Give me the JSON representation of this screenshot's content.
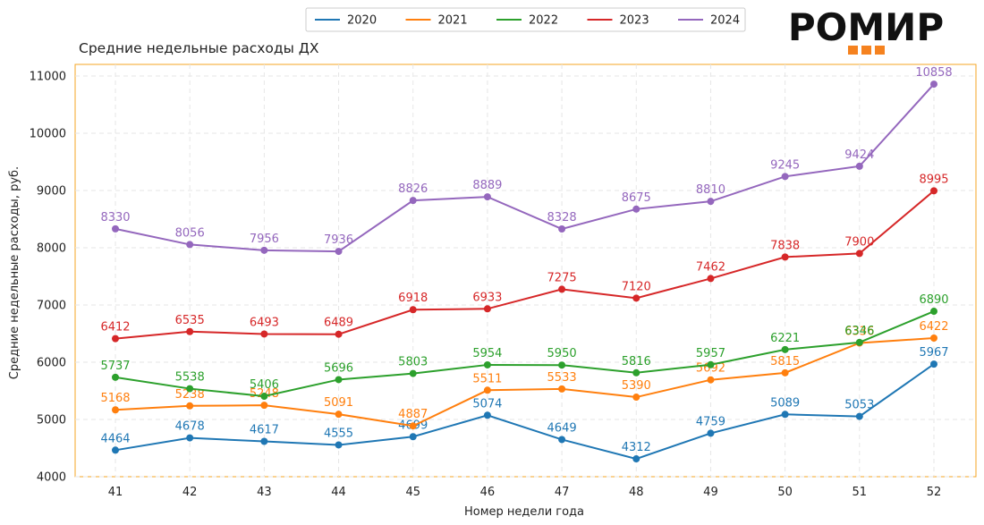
{
  "brand": {
    "logo_text": "РОМИР",
    "logo_color": "#111111",
    "logo_accent": "#f5821f"
  },
  "chart_data": {
    "type": "line",
    "title": "Средние недельные расходы ДХ",
    "xlabel": "Номер недели года",
    "ylabel": "Средние недельные расходы, руб.",
    "x": [
      41,
      42,
      43,
      44,
      45,
      46,
      47,
      48,
      49,
      50,
      51,
      52
    ],
    "ylim": [
      4000,
      11000
    ],
    "yticks": [
      4000,
      5000,
      6000,
      7000,
      8000,
      9000,
      10000,
      11000
    ],
    "grid": true,
    "legend_position": "top-center",
    "frame_color": "#f5a623",
    "series": [
      {
        "name": "2020",
        "color": "#1f77b4",
        "values": [
          4464,
          4678,
          4617,
          4555,
          4699,
          5074,
          4649,
          4312,
          4759,
          5089,
          5053,
          5967
        ]
      },
      {
        "name": "2021",
        "color": "#ff7f0e",
        "values": [
          5168,
          5238,
          5248,
          5091,
          4887,
          5511,
          5533,
          5390,
          5692,
          5815,
          6336,
          6422
        ]
      },
      {
        "name": "2022",
        "color": "#2ca02c",
        "values": [
          5737,
          5538,
          5406,
          5696,
          5803,
          5954,
          5950,
          5816,
          5957,
          6221,
          6346,
          6890
        ]
      },
      {
        "name": "2023",
        "color": "#d62728",
        "values": [
          6412,
          6535,
          6493,
          6489,
          6918,
          6933,
          7275,
          7120,
          7462,
          7838,
          7900,
          8995
        ]
      },
      {
        "name": "2024",
        "color": "#9467bd",
        "values": [
          8330,
          8056,
          7956,
          7936,
          8826,
          8889,
          8328,
          8675,
          8810,
          9245,
          9424,
          10858
        ]
      }
    ]
  }
}
